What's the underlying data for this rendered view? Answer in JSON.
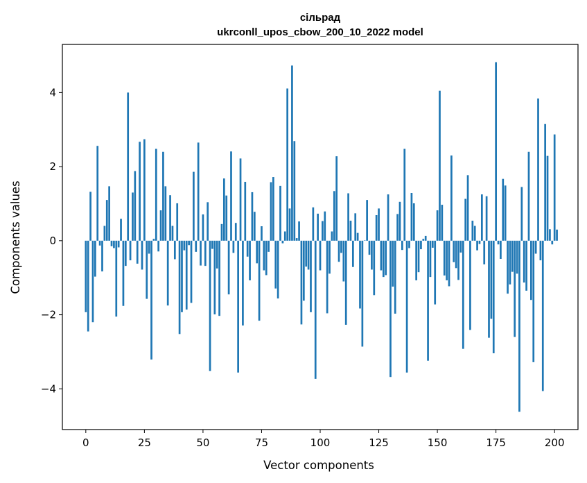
{
  "chart_data": {
    "type": "bar",
    "title": "сільрад",
    "subtitle": "ukrconll_upos_cbow_200_10_2022 model",
    "xlabel": "Vector components",
    "ylabel": "Components values",
    "xlim": [
      -10,
      210
    ],
    "ylim": [
      -5.1,
      5.3
    ],
    "xticks": [
      0,
      25,
      50,
      75,
      100,
      125,
      150,
      175,
      200
    ],
    "yticks": [
      -4,
      -2,
      0,
      2,
      4
    ],
    "ytick_labels": [
      "−4",
      "−2",
      "0",
      "2",
      "4"
    ],
    "grid": false,
    "bar_color": "#1f77b4",
    "values": [
      -1.93,
      -2.45,
      1.32,
      -2.2,
      -0.97,
      2.56,
      -0.13,
      -0.83,
      0.4,
      1.1,
      1.47,
      -0.15,
      -0.2,
      -2.05,
      -0.18,
      0.59,
      -1.76,
      -0.68,
      4.0,
      -0.53,
      1.3,
      1.88,
      -0.62,
      2.67,
      -0.78,
      2.74,
      -1.57,
      -0.35,
      -3.21,
      0.05,
      2.48,
      -0.29,
      0.82,
      2.4,
      1.47,
      -1.75,
      1.23,
      0.4,
      -0.5,
      1.01,
      -2.52,
      -1.93,
      -0.26,
      -1.86,
      -0.12,
      -1.68,
      1.86,
      -0.3,
      2.65,
      -0.67,
      0.71,
      -0.68,
      1.04,
      -3.52,
      -0.22,
      -1.99,
      -0.75,
      -2.03,
      0.45,
      1.68,
      1.22,
      -1.45,
      2.41,
      -0.33,
      0.48,
      -3.56,
      2.22,
      -2.29,
      1.59,
      -0.43,
      -1.07,
      1.31,
      0.78,
      -0.61,
      -2.16,
      0.39,
      -0.8,
      -0.93,
      -0.3,
      1.58,
      1.72,
      -1.29,
      -1.56,
      1.48,
      -0.07,
      0.25,
      4.11,
      0.87,
      4.73,
      2.69,
      0.07,
      0.52,
      -2.26,
      -1.62,
      -0.7,
      -0.78,
      -1.93,
      0.9,
      -3.73,
      0.73,
      -0.8,
      0.53,
      0.79,
      -1.96,
      -0.89,
      0.25,
      1.34,
      2.28,
      -0.57,
      -0.33,
      -1.1,
      -2.27,
      1.28,
      0.54,
      -0.71,
      0.74,
      0.21,
      -1.83,
      -2.86,
      0.01,
      1.1,
      -0.38,
      -0.78,
      -1.47,
      0.69,
      0.87,
      -0.8,
      -0.98,
      -0.93,
      1.25,
      -3.68,
      -1.24,
      -1.97,
      0.72,
      1.05,
      -0.25,
      2.48,
      -3.56,
      -0.2,
      1.29,
      1.01,
      -1.07,
      -0.85,
      -0.23,
      0.05,
      0.13,
      -3.24,
      -0.98,
      -0.19,
      -1.72,
      0.82,
      4.05,
      0.97,
      -0.94,
      -1.07,
      -1.23,
      2.3,
      -0.58,
      -0.74,
      -1.06,
      -0.32,
      -2.92,
      1.13,
      1.77,
      -2.41,
      0.54,
      0.4,
      -0.26,
      -0.09,
      1.25,
      -0.64,
      1.2,
      -2.62,
      -2.11,
      -3.04,
      4.82,
      -0.1,
      -0.49,
      1.67,
      1.49,
      -1.43,
      -1.18,
      -0.84,
      -2.6,
      -0.89,
      -4.62,
      1.45,
      -1.13,
      -1.35,
      2.4,
      -1.6,
      -3.28,
      -0.35,
      3.84,
      -0.53,
      -4.06,
      3.15,
      2.29,
      0.31,
      -0.1,
      2.87,
      0.3
    ]
  }
}
